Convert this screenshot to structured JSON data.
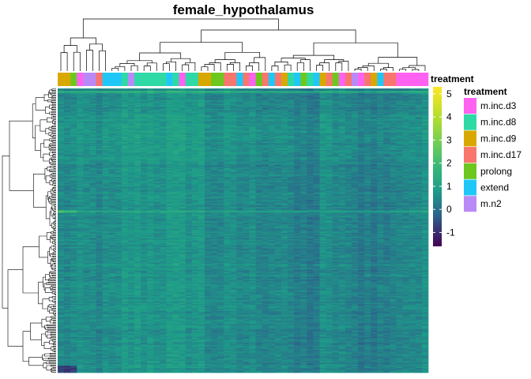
{
  "chart_data": {
    "type": "heatmap",
    "title": "female_hypothalamus",
    "annotation_label": "treatment",
    "legend_title": "treatment",
    "categories": [
      "m.inc.d3",
      "m.inc.d8",
      "m.inc.d9",
      "m.inc.d17",
      "prolong",
      "extend",
      "m.n2"
    ],
    "category_colors": [
      "#FF61F1",
      "#2FD9A6",
      "#D9A800",
      "#F8766D",
      "#6CC81E",
      "#1FC7F8",
      "#B98AF7"
    ],
    "column_treatments": [
      "m.inc.d9",
      "m.inc.d9",
      "prolong",
      "m.inc.d3",
      "m.n2",
      "m.n2",
      "m.inc.d17",
      "extend",
      "extend",
      "extend",
      "m.inc.d8",
      "m.n2",
      "m.inc.d8",
      "m.inc.d8",
      "m.inc.d8",
      "m.inc.d8",
      "m.inc.d8",
      "extend",
      "m.inc.d8",
      "m.inc.d3",
      "m.inc.d8",
      "m.inc.d8",
      "m.inc.d9",
      "m.inc.d9",
      "prolong",
      "prolong",
      "m.inc.d17",
      "m.inc.d17",
      "extend",
      "m.inc.d17",
      "m.inc.d3",
      "prolong",
      "m.inc.d17",
      "extend",
      "m.inc.d17",
      "m.inc.d9",
      "m.inc.d8",
      "extend",
      "prolong",
      "m.inc.d8",
      "extend",
      "m.inc.d9",
      "m.inc.d17",
      "prolong",
      "m.inc.d3",
      "m.inc.d17",
      "m.n2",
      "m.inc.d3",
      "m.inc.d17",
      "m.inc.d9",
      "extend",
      "m.inc.d17",
      "m.inc.d17",
      "m.inc.d3",
      "m.inc.d3",
      "m.inc.d3",
      "m.inc.d3",
      "m.inc.d3"
    ],
    "color_scale": {
      "colors": [
        "#440154",
        "#2D5F8A",
        "#1E9C89",
        "#35B779",
        "#6DCD59",
        "#B4DE2C",
        "#FDE725"
      ],
      "breaks": [
        5,
        4,
        3,
        2,
        1,
        0,
        -1
      ],
      "range": [
        -1.6,
        5.3
      ]
    },
    "row_count": 240,
    "column_count": 58
  }
}
